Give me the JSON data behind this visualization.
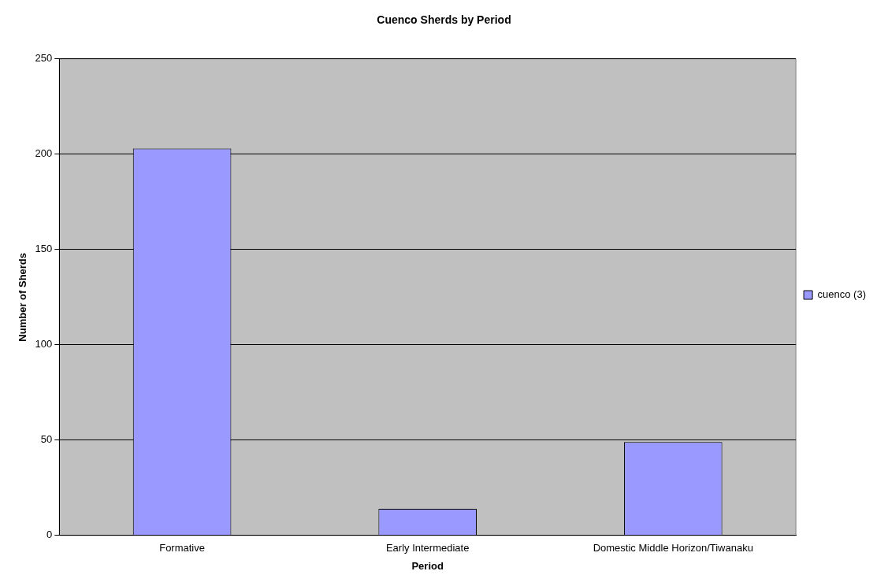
{
  "chart_data": {
    "type": "bar",
    "title": "Cuenco Sherds by Period",
    "xlabel": "Period",
    "ylabel": "Number of Sherds",
    "categories": [
      "Formative",
      "Early Intermediate",
      "Domestic Middle Horizon/Tiwanaku"
    ],
    "series": [
      {
        "name": "cuenco (3)",
        "color": "#9999ff",
        "values": [
          203,
          14,
          49
        ]
      }
    ],
    "ylim": [
      0,
      250
    ],
    "yticks": [
      0,
      50,
      100,
      150,
      200,
      250
    ],
    "grid": "y",
    "legend": "right"
  }
}
